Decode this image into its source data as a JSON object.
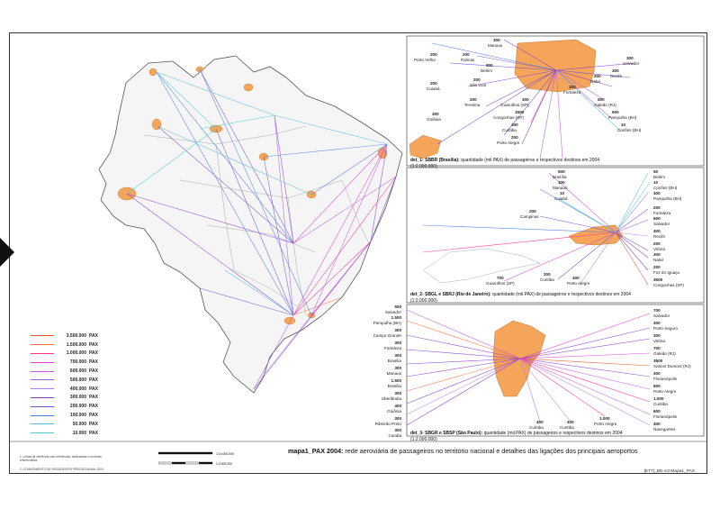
{
  "title": {
    "bold": "mapa1_PAX 2004:",
    "rest": " rede aeroviária de passageiros no território nacional e detalhes das ligações dos principais aeroportos"
  },
  "code": "[ET7]_BD-A3-Mapa1_PAX",
  "notes": {
    "line1": "1. Linhas de referência com referências, assinaladas com linhas referenciadas",
    "line2": "2. LEVANTAMENTO DE PASSAGEIROS PERÍODO ANUAL 2004"
  },
  "scale": {
    "t1": "1:10.000.000",
    "t2": "1:2.000.000"
  },
  "legend": [
    {
      "value": "3.500.000",
      "unit": "PAX",
      "color": "#e8501e"
    },
    {
      "value": "1.500.000",
      "unit": "PAX",
      "color": "#ff6f3a"
    },
    {
      "value": "1.000.000",
      "unit": "PAX",
      "color": "#ff2d8c"
    },
    {
      "value": "700.000",
      "unit": "PAX",
      "color": "#e33ae0"
    },
    {
      "value": "600.000",
      "unit": "PAX",
      "color": "#c855e8"
    },
    {
      "value": "500.000",
      "unit": "PAX",
      "color": "#9a5ce8"
    },
    {
      "value": "400.000",
      "unit": "PAX",
      "color": "#b07cf0"
    },
    {
      "value": "300.000",
      "unit": "PAX",
      "color": "#8a39d0"
    },
    {
      "value": "200.000",
      "unit": "PAX",
      "color": "#6c4fd8"
    },
    {
      "value": "100.000",
      "unit": "PAX",
      "color": "#4b7be8"
    },
    {
      "value": "50.000",
      "unit": "PAX",
      "color": "#55b8e8"
    },
    {
      "value": "10.000",
      "unit": "PAX",
      "color": "#49d2cf"
    }
  ],
  "det1": {
    "caption_bold": "det_1- SBBR (Brasília):",
    "caption": " quantidade (mil.PAX) de passageiros e respectivos destinos em 2004",
    "scale": "(1:2.000.000)",
    "labels": [
      {
        "v": "300",
        "n": "Manaus"
      },
      {
        "v": "200",
        "n": "Porto Velho"
      },
      {
        "v": "200",
        "n": "Palmas"
      },
      {
        "v": "300",
        "n": "Belém"
      },
      {
        "v": "200",
        "n": "Cuiabá"
      },
      {
        "v": "200",
        "n": "São Luís"
      },
      {
        "v": "200",
        "n": "Teresina"
      },
      {
        "v": "300",
        "n": "Guarulhos (SP)"
      },
      {
        "v": "1500",
        "n": "Congonhas (SP)"
      },
      {
        "v": "300",
        "n": "Goiânia"
      },
      {
        "v": "300",
        "n": "Curitiba"
      },
      {
        "v": "200",
        "n": "Porto Alegre"
      },
      {
        "v": "300",
        "n": "Salvador"
      },
      {
        "v": "300",
        "n": "Recife"
      },
      {
        "v": "200",
        "n": "Natal"
      },
      {
        "v": "300",
        "n": "Fortaleza"
      },
      {
        "v": "500",
        "n": "Galeão (RJ)"
      },
      {
        "v": "500",
        "n": "Pampulha (BH)"
      },
      {
        "v": "10",
        "n": "Confins (BH)"
      }
    ]
  },
  "det2": {
    "caption_bold": "det_2- SBGL e SBRJ (Rio de Janeiro):",
    "caption": " quantidade (mil.PAX) de passageiros e respectivos destinos em 2004",
    "scale": "(1:2.000.000)",
    "labels": [
      {
        "v": "500",
        "n": "Brasília"
      },
      {
        "v": "100",
        "n": "Manaus"
      },
      {
        "v": "10",
        "n": "Cuiabá"
      },
      {
        "v": "200",
        "n": "Campinas"
      },
      {
        "v": "700",
        "n": "Guarulhos (SP)"
      },
      {
        "v": "200",
        "n": "Curitiba"
      },
      {
        "v": "400",
        "n": "Porto Alegre"
      },
      {
        "v": "50",
        "n": "Belém"
      },
      {
        "v": "10",
        "n": "Confins (BH)"
      },
      {
        "v": "400",
        "n": "Pampulha (BH)"
      },
      {
        "v": "200",
        "n": "Fortaleza"
      },
      {
        "v": "600",
        "n": "Salvador"
      },
      {
        "v": "400",
        "n": "Recife"
      },
      {
        "v": "200",
        "n": "Vitória"
      },
      {
        "v": "300",
        "n": "Natal"
      },
      {
        "v": "200",
        "n": "Foz do Iguaçu"
      },
      {
        "v": "3500",
        "n": "Congonhas (SP)"
      }
    ]
  },
  "det3": {
    "caption_bold": "det_3- SBGR e SBSP (São Paulo):",
    "caption": " quantidade (mil.PAX) de passageiros e respectivos destinos em 2004",
    "scale": "(1:2.000.000)",
    "left_labels": [
      {
        "v": "500",
        "n": "Salvador"
      },
      {
        "v": "1.500",
        "n": "Pampulha (BH)"
      },
      {
        "v": "300",
        "n": "Campo Grande"
      },
      {
        "v": "300",
        "n": "Fortaleza"
      },
      {
        "v": "300",
        "n": "Brasília"
      },
      {
        "v": "300",
        "n": "Manaus"
      },
      {
        "v": "1.500",
        "n": "Brasília"
      },
      {
        "v": "300",
        "n": "Uberlândia"
      },
      {
        "v": "400",
        "n": "Goiânia"
      },
      {
        "v": "300",
        "n": "Ribeirão Preto"
      },
      {
        "v": "300",
        "n": "Cuiabá"
      }
    ],
    "right_labels": [
      {
        "v": "700",
        "n": "Salvador"
      },
      {
        "v": "300",
        "n": "Porto Seguro"
      },
      {
        "v": "300",
        "n": "Vitória"
      },
      {
        "v": "700",
        "n": "Galeão (RJ)"
      },
      {
        "v": "3500",
        "n": "Santos Dumont (RJ)"
      },
      {
        "v": "300",
        "n": "Florianópolis"
      },
      {
        "v": "600",
        "n": "Porto Alegre"
      },
      {
        "v": "1.000",
        "n": "Curitiba"
      },
      {
        "v": "600",
        "n": "Florianópolis"
      },
      {
        "v": "400",
        "n": "Navegantes"
      }
    ],
    "bottom_labels": [
      {
        "v": "400",
        "n": "Curitiba"
      },
      {
        "v": "400",
        "n": "Curitiba"
      },
      {
        "v": "1.000",
        "n": "Porto Alegre"
      }
    ]
  }
}
